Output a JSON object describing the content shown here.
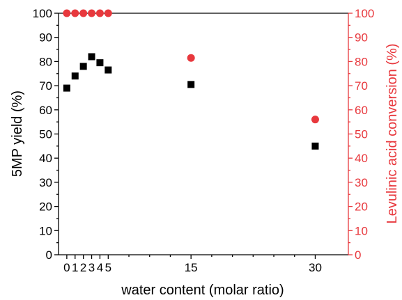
{
  "chart_data": {
    "type": "scatter",
    "xlabel": "water content (molar ratio)",
    "ylabel": "5MP yield (%)",
    "y2label": "Levulinic acid conversion (%)",
    "xlim": [
      -1,
      34
    ],
    "ylim": [
      0,
      100
    ],
    "y2lim": [
      0,
      100
    ],
    "xticks": [
      0,
      1,
      2,
      3,
      4,
      5,
      15,
      30
    ],
    "xtick_labels": [
      "0",
      "1",
      "2",
      "3",
      "4",
      "5",
      "15",
      "30"
    ],
    "yticks": [
      0,
      10,
      20,
      30,
      40,
      50,
      60,
      70,
      80,
      90,
      100
    ],
    "ytick_labels": [
      "0",
      "10",
      "20",
      "30",
      "40",
      "50",
      "60",
      "70",
      "80",
      "90",
      "100"
    ],
    "y2ticks": [
      0,
      10,
      20,
      30,
      40,
      50,
      60,
      70,
      80,
      90,
      100
    ],
    "y2tick_labels": [
      "0",
      "10",
      "20",
      "30",
      "40",
      "50",
      "60",
      "70",
      "80",
      "90",
      "100"
    ],
    "grid": false,
    "series": [
      {
        "axis": "left",
        "marker": "square",
        "color": "#000000",
        "x": [
          0,
          1,
          2,
          3,
          4,
          5,
          15,
          30
        ],
        "y": [
          69,
          74,
          78,
          82,
          79.5,
          76.5,
          70.5,
          45
        ]
      },
      {
        "axis": "right",
        "marker": "circle",
        "color": "#e8383d",
        "x": [
          0,
          1,
          2,
          3,
          4,
          5,
          15,
          30
        ],
        "y": [
          100,
          100,
          100,
          100,
          100,
          100,
          81.5,
          56
        ]
      }
    ]
  }
}
